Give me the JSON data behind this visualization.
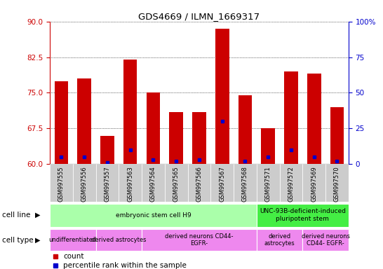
{
  "title": "GDS4669 / ILMN_1669317",
  "samples": [
    "GSM997555",
    "GSM997556",
    "GSM997557",
    "GSM997563",
    "GSM997564",
    "GSM997565",
    "GSM997566",
    "GSM997567",
    "GSM997568",
    "GSM997571",
    "GSM997572",
    "GSM997569",
    "GSM997570"
  ],
  "counts": [
    77.5,
    78.0,
    66.0,
    82.0,
    75.0,
    71.0,
    71.0,
    88.5,
    74.5,
    67.5,
    79.5,
    79.0,
    72.0
  ],
  "percentile_ranks": [
    5,
    5,
    1,
    10,
    3,
    2,
    3,
    30,
    2,
    5,
    10,
    5,
    2
  ],
  "ylim_left": [
    60,
    90
  ],
  "ylim_right": [
    0,
    100
  ],
  "yticks_left": [
    60,
    67.5,
    75,
    82.5,
    90
  ],
  "yticks_right": [
    0,
    25,
    50,
    75,
    100
  ],
  "bar_color": "#cc0000",
  "dot_color": "#0000cc",
  "bar_bottom": 60,
  "cell_line_groups": [
    {
      "label": "embryonic stem cell H9",
      "start": 0,
      "end": 9,
      "color": "#aaffaa"
    },
    {
      "label": "UNC-93B-deficient-induced\npluripotent stem",
      "start": 9,
      "end": 13,
      "color": "#44ee44"
    }
  ],
  "cell_type_groups": [
    {
      "label": "undifferentiated",
      "start": 0,
      "end": 2,
      "color": "#ee88ee"
    },
    {
      "label": "derived astrocytes",
      "start": 2,
      "end": 4,
      "color": "#ee88ee"
    },
    {
      "label": "derived neurons CD44-\nEGFR-",
      "start": 4,
      "end": 9,
      "color": "#ee88ee"
    },
    {
      "label": "derived\nastrocytes",
      "start": 9,
      "end": 11,
      "color": "#ee88ee"
    },
    {
      "label": "derived neurons\nCD44- EGFR-",
      "start": 11,
      "end": 13,
      "color": "#ee88ee"
    }
  ],
  "legend_count_color": "#cc0000",
  "legend_pct_color": "#0000cc",
  "grid_color": "black",
  "background_color": "white",
  "tick_label_color_left": "#cc0000",
  "tick_label_color_right": "#0000cc",
  "xtick_bg_color": "#cccccc"
}
